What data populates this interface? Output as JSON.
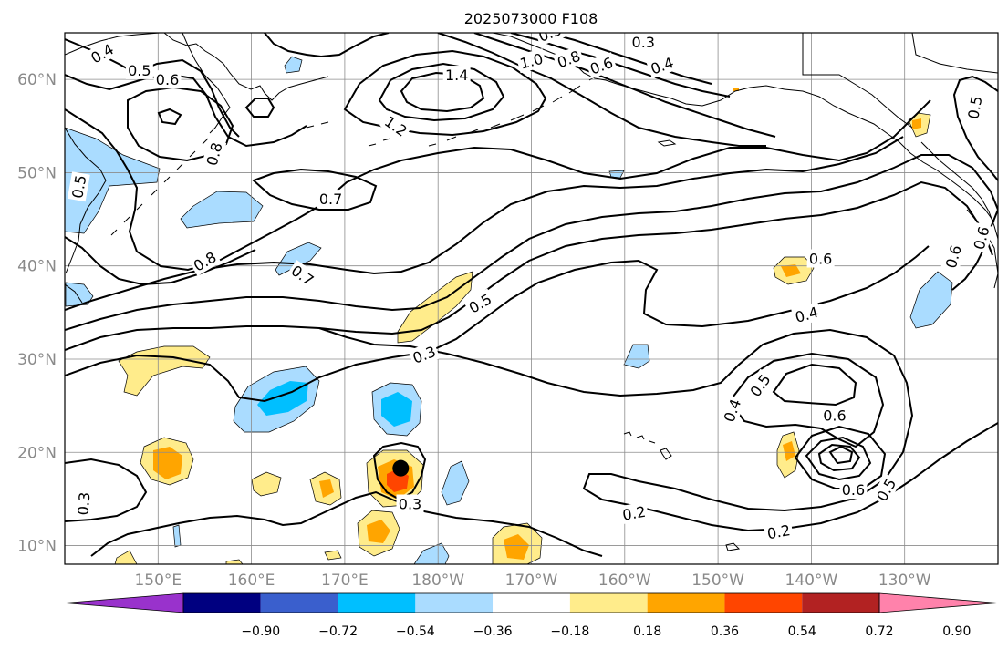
{
  "title": "2025073000 F108",
  "map": {
    "lon_range": [
      140,
      240
    ],
    "lat_range": [
      8,
      65
    ],
    "lon_ticks": [
      {
        "lon": 150,
        "label": "150°E"
      },
      {
        "lon": 160,
        "label": "160°E"
      },
      {
        "lon": 170,
        "label": "170°E"
      },
      {
        "lon": 180,
        "label": "180°W"
      },
      {
        "lon": 190,
        "label": "170°W"
      },
      {
        "lon": 200,
        "label": "160°W"
      },
      {
        "lon": 210,
        "label": "150°W"
      },
      {
        "lon": 220,
        "label": "140°W"
      },
      {
        "lon": 230,
        "label": "130°W"
      }
    ],
    "lat_ticks": [
      {
        "lat": 10,
        "label": "10°N"
      },
      {
        "lat": 20,
        "label": "20°N"
      },
      {
        "lat": 30,
        "label": "30°N"
      },
      {
        "lat": 40,
        "label": "40°N"
      },
      {
        "lat": 50,
        "label": "50°N"
      },
      {
        "lat": 60,
        "label": "60°N"
      }
    ],
    "grid": true,
    "contour_labels": [
      {
        "text": "0.4",
        "lon": 144,
        "lat": 62.8,
        "rot": -30
      },
      {
        "text": "0.5",
        "lon": 148,
        "lat": 61,
        "rot": 0
      },
      {
        "text": "0.6",
        "lon": 151,
        "lat": 60,
        "rot": 0
      },
      {
        "text": "0.8",
        "lon": 156,
        "lat": 52,
        "rot": -75
      },
      {
        "text": "0.5",
        "lon": 141.5,
        "lat": 48.5,
        "rot": -80
      },
      {
        "text": "0.7",
        "lon": 168.5,
        "lat": 47.2,
        "rot": 0
      },
      {
        "text": "0.8",
        "lon": 155,
        "lat": 40.5,
        "rot": -30
      },
      {
        "text": "0.7",
        "lon": 165.5,
        "lat": 39,
        "rot": 35
      },
      {
        "text": "1.4",
        "lon": 182,
        "lat": 60.5,
        "rot": 0
      },
      {
        "text": "1.2",
        "lon": 175.5,
        "lat": 55,
        "rot": 35
      },
      {
        "text": "1.0",
        "lon": 190,
        "lat": 62,
        "rot": -15
      },
      {
        "text": "0.8",
        "lon": 194,
        "lat": 62.2,
        "rot": -20
      },
      {
        "text": "0.6",
        "lon": 197.5,
        "lat": 61.5,
        "rot": -20
      },
      {
        "text": "0.5",
        "lon": 192,
        "lat": 65,
        "rot": -20
      },
      {
        "text": "0.3",
        "lon": 202,
        "lat": 64,
        "rot": 0
      },
      {
        "text": "0.4",
        "lon": 204,
        "lat": 61.5,
        "rot": -20
      },
      {
        "text": "0.5",
        "lon": 237.5,
        "lat": 57,
        "rot": -80
      },
      {
        "text": "0.6",
        "lon": 221,
        "lat": 40.8,
        "rot": 0
      },
      {
        "text": "0.6",
        "lon": 235.2,
        "lat": 41,
        "rot": -75
      },
      {
        "text": "0.6",
        "lon": 238.2,
        "lat": 43,
        "rot": -75
      },
      {
        "text": "0.5",
        "lon": 184.5,
        "lat": 36,
        "rot": -30
      },
      {
        "text": "0.4",
        "lon": 219.5,
        "lat": 34.8,
        "rot": -15
      },
      {
        "text": "0.3",
        "lon": 178.5,
        "lat": 30.5,
        "rot": -20
      },
      {
        "text": "0.4",
        "lon": 211.5,
        "lat": 24.5,
        "rot": -70
      },
      {
        "text": "0.5",
        "lon": 214.5,
        "lat": 27.2,
        "rot": -55
      },
      {
        "text": "0.6",
        "lon": 222.5,
        "lat": 24,
        "rot": 0
      },
      {
        "text": "0.6",
        "lon": 224.5,
        "lat": 16,
        "rot": 0
      },
      {
        "text": "0.5",
        "lon": 228,
        "lat": 16,
        "rot": -60
      },
      {
        "text": "0.2",
        "lon": 201,
        "lat": 13.5,
        "rot": -10
      },
      {
        "text": "0.2",
        "lon": 216.5,
        "lat": 11.5,
        "rot": -10
      },
      {
        "text": "0.3",
        "lon": 142,
        "lat": 14.5,
        "rot": -85
      },
      {
        "text": "0.3",
        "lon": 177,
        "lat": 14.5,
        "rot": 0
      }
    ],
    "storm_marker": {
      "lon": 176,
      "lat": 18.3
    },
    "colors": {
      "contour": "#000000",
      "grid": "#8c8c8c",
      "tick_label": "#8a8a8a"
    }
  },
  "colorbar": {
    "colors": [
      "#9932cc",
      "#000080",
      "#3a5fcd",
      "#00bfff",
      "#aadcff",
      "#ffffff",
      "#ffec8b",
      "#ffa500",
      "#ff4500",
      "#b22222",
      "#ff82ab"
    ],
    "tick_labels": [
      "−0.90",
      "−0.72",
      "−0.54",
      "−0.36",
      "−0.18",
      "0.18",
      "0.36",
      "0.54",
      "0.72",
      "0.90"
    ]
  }
}
